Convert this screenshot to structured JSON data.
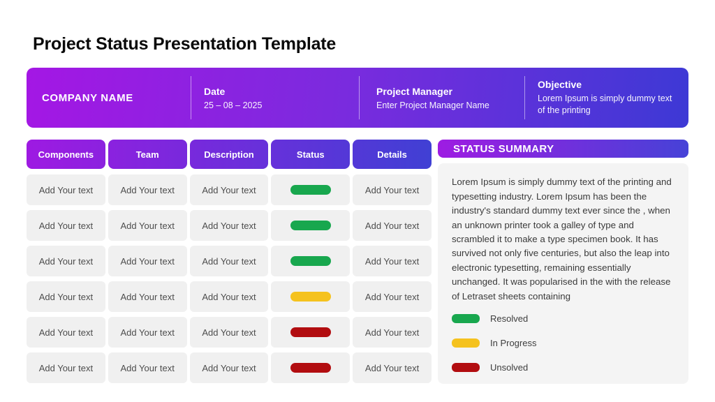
{
  "page": {
    "title": "Project Status Presentation Template"
  },
  "info_bar": {
    "company_name": "COMPANY NAME",
    "date": {
      "label": "Date",
      "value": "25 – 08 – 2025"
    },
    "project_manager": {
      "label": "Project Manager",
      "value": "Enter Project Manager Name"
    },
    "objective": {
      "label": "Objective",
      "value": "Lorem Ipsum is simply dummy text of the printing"
    }
  },
  "table": {
    "columns": [
      "Components",
      "Team",
      "Description",
      "Status",
      "Details"
    ],
    "rows": [
      {
        "components": "Add Your text",
        "team": "Add Your text",
        "description": "Add Your text",
        "status": "resolved",
        "details": "Add Your text"
      },
      {
        "components": "Add Your text",
        "team": "Add Your text",
        "description": "Add Your text",
        "status": "resolved",
        "details": "Add Your text"
      },
      {
        "components": "Add Your text",
        "team": "Add Your text",
        "description": "Add Your text",
        "status": "resolved",
        "details": "Add Your text"
      },
      {
        "components": "Add Your text",
        "team": "Add Your text",
        "description": "Add Your text",
        "status": "in_progress",
        "details": "Add Your text"
      },
      {
        "components": "Add Your text",
        "team": "Add Your text",
        "description": "Add Your text",
        "status": "unsolved",
        "details": "Add Your text"
      },
      {
        "components": "Add Your text",
        "team": "Add Your text",
        "description": "Add Your text",
        "status": "unsolved",
        "details": "Add Your text"
      }
    ]
  },
  "status_summary": {
    "title": "STATUS SUMMARY",
    "body": "Lorem Ipsum is simply dummy text of the printing and typesetting industry. Lorem Ipsum has been the industry's standard dummy text ever since the , when an unknown printer took a galley of type and scrambled it to make a type specimen book. It has survived not only five centuries, but also the leap into electronic typesetting, remaining essentially unchanged. It was popularised in the  with the release of Letraset sheets containing",
    "legend": [
      {
        "key": "resolved",
        "label": "Resolved",
        "color": "#18A74E"
      },
      {
        "key": "in_progress",
        "label": "In Progress",
        "color": "#F5C21E"
      },
      {
        "key": "unsolved",
        "label": "Unsolved",
        "color": "#B20D10"
      }
    ]
  },
  "colors": {
    "gradient_start": "#A417E4",
    "gradient_end": "#3D39D5",
    "resolved": "#18A74E",
    "in_progress": "#F5C21E",
    "unsolved": "#B20D10"
  }
}
